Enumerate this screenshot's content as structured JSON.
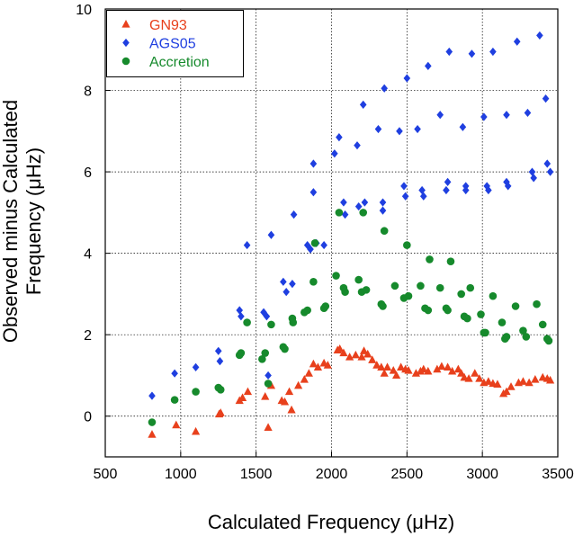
{
  "chart_data": {
    "type": "scatter",
    "title": "",
    "xlabel": "Calculated Frequency (μHz)",
    "ylabel_lines": [
      "Observed minus Calculated",
      "Frequency (μHz)"
    ],
    "xlim": [
      500,
      3500
    ],
    "ylim": [
      -1,
      10
    ],
    "x_ticks": [
      500,
      1000,
      1500,
      2000,
      2500,
      3000,
      3500
    ],
    "y_ticks": [
      0,
      2,
      4,
      6,
      8,
      10
    ],
    "grid": true,
    "legend_position": "top-left",
    "series": [
      {
        "name": "GN93",
        "marker": "triangle",
        "color": "#e8401c",
        "points": [
          [
            810,
            -0.45
          ],
          [
            970,
            -0.22
          ],
          [
            1100,
            -0.38
          ],
          [
            1255,
            0.05
          ],
          [
            1265,
            0.08
          ],
          [
            1390,
            0.38
          ],
          [
            1410,
            0.45
          ],
          [
            1445,
            0.6
          ],
          [
            1560,
            0.48
          ],
          [
            1580,
            -0.28
          ],
          [
            1600,
            0.75
          ],
          [
            1670,
            0.38
          ],
          [
            1690,
            0.35
          ],
          [
            1720,
            0.6
          ],
          [
            1735,
            0.15
          ],
          [
            1780,
            0.75
          ],
          [
            1820,
            0.9
          ],
          [
            1850,
            1.05
          ],
          [
            1880,
            1.28
          ],
          [
            1910,
            1.2
          ],
          [
            1950,
            1.3
          ],
          [
            1975,
            1.25
          ],
          [
            2040,
            1.62
          ],
          [
            2055,
            1.65
          ],
          [
            2080,
            1.55
          ],
          [
            2120,
            1.45
          ],
          [
            2160,
            1.5
          ],
          [
            2200,
            1.45
          ],
          [
            2215,
            1.6
          ],
          [
            2240,
            1.52
          ],
          [
            2270,
            1.38
          ],
          [
            2300,
            1.25
          ],
          [
            2330,
            1.2
          ],
          [
            2350,
            1.05
          ],
          [
            2370,
            1.2
          ],
          [
            2410,
            1.12
          ],
          [
            2430,
            1.0
          ],
          [
            2460,
            1.2
          ],
          [
            2490,
            1.15
          ],
          [
            2510,
            1.12
          ],
          [
            2560,
            1.05
          ],
          [
            2590,
            1.1
          ],
          [
            2610,
            1.15
          ],
          [
            2640,
            1.1
          ],
          [
            2700,
            1.15
          ],
          [
            2730,
            1.22
          ],
          [
            2770,
            1.2
          ],
          [
            2800,
            1.1
          ],
          [
            2840,
            1.15
          ],
          [
            2860,
            1.05
          ],
          [
            2880,
            0.95
          ],
          [
            2910,
            0.92
          ],
          [
            2950,
            1.05
          ],
          [
            2980,
            0.92
          ],
          [
            3010,
            0.82
          ],
          [
            3040,
            0.85
          ],
          [
            3070,
            0.8
          ],
          [
            3100,
            0.78
          ],
          [
            3140,
            0.55
          ],
          [
            3160,
            0.6
          ],
          [
            3190,
            0.72
          ],
          [
            3240,
            0.82
          ],
          [
            3270,
            0.85
          ],
          [
            3310,
            0.82
          ],
          [
            3350,
            0.9
          ],
          [
            3400,
            0.95
          ],
          [
            3430,
            0.92
          ],
          [
            3450,
            0.88
          ]
        ]
      },
      {
        "name": "AGS05",
        "marker": "diamond",
        "color": "#1f3fe0",
        "points": [
          [
            810,
            0.5
          ],
          [
            960,
            1.05
          ],
          [
            1100,
            1.2
          ],
          [
            1250,
            1.6
          ],
          [
            1260,
            1.35
          ],
          [
            1390,
            2.6
          ],
          [
            1400,
            2.45
          ],
          [
            1440,
            4.2
          ],
          [
            1550,
            2.55
          ],
          [
            1570,
            2.45
          ],
          [
            1580,
            1.0
          ],
          [
            1600,
            4.45
          ],
          [
            1680,
            3.3
          ],
          [
            1700,
            3.05
          ],
          [
            1740,
            3.25
          ],
          [
            1750,
            4.95
          ],
          [
            1840,
            4.2
          ],
          [
            1860,
            4.1
          ],
          [
            1900,
            4.25
          ],
          [
            1880,
            5.5
          ],
          [
            1880,
            6.2
          ],
          [
            1950,
            4.2
          ],
          [
            2020,
            6.45
          ],
          [
            2050,
            6.85
          ],
          [
            2080,
            5.25
          ],
          [
            2090,
            4.95
          ],
          [
            2170,
            6.65
          ],
          [
            2180,
            5.15
          ],
          [
            2220,
            5.25
          ],
          [
            2210,
            7.65
          ],
          [
            2310,
            7.05
          ],
          [
            2340,
            5.25
          ],
          [
            2340,
            5.05
          ],
          [
            2350,
            8.05
          ],
          [
            2450,
            7.0
          ],
          [
            2480,
            5.65
          ],
          [
            2490,
            5.4
          ],
          [
            2500,
            8.3
          ],
          [
            2570,
            7.05
          ],
          [
            2600,
            5.55
          ],
          [
            2610,
            5.4
          ],
          [
            2640,
            8.6
          ],
          [
            2720,
            7.4
          ],
          [
            2760,
            5.55
          ],
          [
            2770,
            5.75
          ],
          [
            2780,
            8.95
          ],
          [
            2870,
            7.1
          ],
          [
            2890,
            5.65
          ],
          [
            2890,
            5.55
          ],
          [
            2930,
            8.9
          ],
          [
            3010,
            7.35
          ],
          [
            3030,
            5.65
          ],
          [
            3040,
            5.55
          ],
          [
            3070,
            8.95
          ],
          [
            3160,
            7.4
          ],
          [
            3160,
            5.75
          ],
          [
            3170,
            5.65
          ],
          [
            3230,
            9.2
          ],
          [
            3300,
            7.45
          ],
          [
            3330,
            6.0
          ],
          [
            3340,
            5.85
          ],
          [
            3380,
            9.35
          ],
          [
            3420,
            7.8
          ],
          [
            3430,
            6.2
          ],
          [
            3450,
            6.0
          ]
        ]
      },
      {
        "name": "Accretion",
        "marker": "circle",
        "color": "#168a2c",
        "points": [
          [
            810,
            -0.15
          ],
          [
            960,
            0.4
          ],
          [
            1100,
            0.6
          ],
          [
            1250,
            0.7
          ],
          [
            1265,
            0.65
          ],
          [
            1390,
            1.5
          ],
          [
            1400,
            1.55
          ],
          [
            1440,
            2.3
          ],
          [
            1540,
            1.4
          ],
          [
            1560,
            1.55
          ],
          [
            1580,
            0.8
          ],
          [
            1600,
            2.25
          ],
          [
            1680,
            1.7
          ],
          [
            1690,
            1.65
          ],
          [
            1740,
            2.4
          ],
          [
            1745,
            2.3
          ],
          [
            1820,
            2.55
          ],
          [
            1840,
            2.6
          ],
          [
            1880,
            3.3
          ],
          [
            1890,
            4.25
          ],
          [
            1950,
            2.65
          ],
          [
            1960,
            2.7
          ],
          [
            2030,
            3.45
          ],
          [
            2050,
            5.0
          ],
          [
            2080,
            3.15
          ],
          [
            2090,
            3.05
          ],
          [
            2180,
            3.35
          ],
          [
            2200,
            3.05
          ],
          [
            2210,
            5.0
          ],
          [
            2230,
            3.1
          ],
          [
            2330,
            2.75
          ],
          [
            2340,
            2.7
          ],
          [
            2350,
            4.55
          ],
          [
            2420,
            3.2
          ],
          [
            2480,
            2.9
          ],
          [
            2500,
            4.2
          ],
          [
            2510,
            2.95
          ],
          [
            2590,
            3.2
          ],
          [
            2620,
            2.65
          ],
          [
            2640,
            2.6
          ],
          [
            2650,
            3.85
          ],
          [
            2720,
            3.15
          ],
          [
            2760,
            2.65
          ],
          [
            2770,
            2.6
          ],
          [
            2790,
            3.8
          ],
          [
            2860,
            3.0
          ],
          [
            2880,
            2.45
          ],
          [
            2900,
            2.4
          ],
          [
            2920,
            3.15
          ],
          [
            2990,
            2.5
          ],
          [
            3010,
            2.05
          ],
          [
            3020,
            2.05
          ],
          [
            3070,
            2.95
          ],
          [
            3130,
            2.3
          ],
          [
            3150,
            1.9
          ],
          [
            3160,
            1.95
          ],
          [
            3220,
            2.7
          ],
          [
            3270,
            2.1
          ],
          [
            3290,
            1.95
          ],
          [
            3360,
            2.75
          ],
          [
            3400,
            2.25
          ],
          [
            3430,
            1.9
          ],
          [
            3440,
            1.85
          ]
        ]
      }
    ]
  }
}
